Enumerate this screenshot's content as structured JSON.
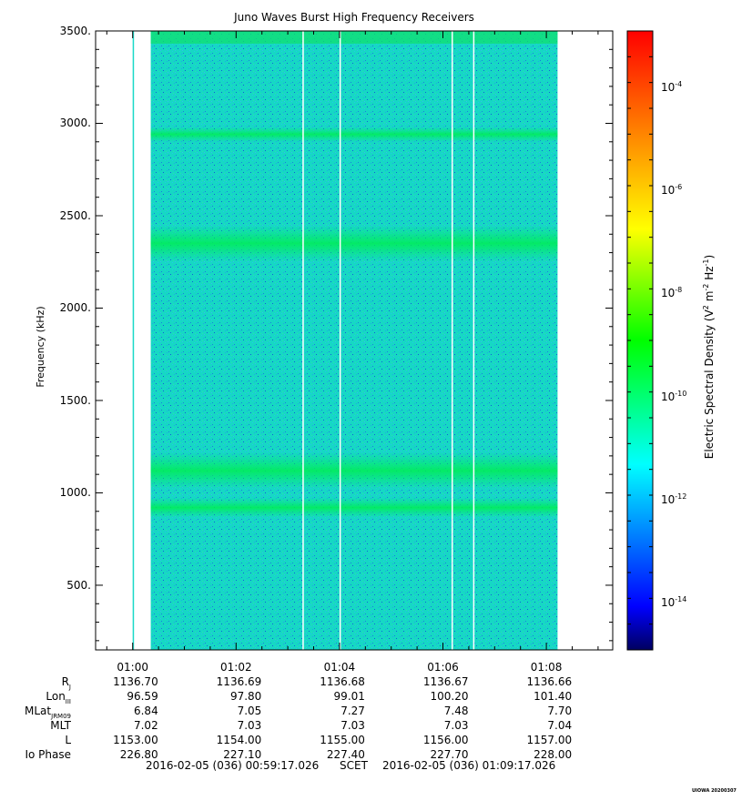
{
  "chart_data": {
    "type": "heatmap",
    "title": "Juno Waves Burst High Frequency Receivers",
    "ylabel": "Frequency (kHz)",
    "ylim": [
      150,
      3500
    ],
    "yticks": [
      {
        "value": 500,
        "label": "500."
      },
      {
        "value": 1000,
        "label": "1000."
      },
      {
        "value": 1500,
        "label": "1500."
      },
      {
        "value": 2000,
        "label": "2000."
      },
      {
        "value": 2500,
        "label": "2500."
      },
      {
        "value": 3000,
        "label": "3000."
      },
      {
        "value": 3500,
        "label": "3500."
      }
    ],
    "x_time_range": [
      "2016-02-05 00:59:17.026",
      "2016-02-05 01:09:17.026"
    ],
    "xticks": [
      "01:00",
      "01:02",
      "01:04",
      "01:06",
      "01:08"
    ],
    "data_coverage": {
      "isolated_column": "01:00:00",
      "start": "01:00:21",
      "end": "01:08:13"
    },
    "data_gaps": [
      "01:03:17",
      "01:04:00",
      "01:06:10",
      "01:06:35"
    ],
    "emission_bands_khz": [
      920,
      1120,
      2350,
      2940
    ],
    "colorbar": {
      "label_main": "Electric Spectral Density (V",
      "label_sup1": "2",
      "label_mid": " m",
      "label_sup2": "-2",
      "label_mid2": " Hz",
      "label_sup3": "-1",
      "label_end": ")",
      "scale": "log",
      "range": [
        -15,
        -3
      ],
      "tick_base": "10",
      "ticks": [
        {
          "exp": -4,
          "label": "-4"
        },
        {
          "exp": -6,
          "label": "-6"
        },
        {
          "exp": -8,
          "label": "-8"
        },
        {
          "exp": -10,
          "label": "-10"
        },
        {
          "exp": -12,
          "label": "-12"
        },
        {
          "exp": -14,
          "label": "-14"
        }
      ],
      "colors": [
        "#000080",
        "#0000ff",
        "#00ffff",
        "#00ff00",
        "#ffff00",
        "#ff8000",
        "#ff0000"
      ]
    },
    "ephemeris": {
      "rows": [
        {
          "label": "R",
          "sub": "J",
          "values": [
            "1136.70",
            "1136.69",
            "1136.68",
            "1136.67",
            "1136.66"
          ]
        },
        {
          "label": "Lon",
          "sub": "III",
          "values": [
            "96.59",
            "97.80",
            "99.01",
            "100.20",
            "101.40"
          ]
        },
        {
          "label": "MLat",
          "sub": "JRM09",
          "values": [
            "6.84",
            "7.05",
            "7.27",
            "7.48",
            "7.70"
          ]
        },
        {
          "label": "MLT",
          "sub": "",
          "values": [
            "7.02",
            "7.03",
            "7.03",
            "7.03",
            "7.04"
          ]
        },
        {
          "label": "L",
          "sub": "",
          "values": [
            "1153.00",
            "1154.00",
            "1155.00",
            "1156.00",
            "1157.00"
          ]
        },
        {
          "label": "Io Phase",
          "sub": "",
          "values": [
            "226.80",
            "227.10",
            "227.40",
            "227.70",
            "228.00"
          ]
        }
      ]
    },
    "footer_start": "2016-02-05 (036) 00:59:17.026",
    "footer_mid": "SCET",
    "footer_end": "2016-02-05 (036) 01:09:17.026",
    "credit": "UIOWA 20200307"
  }
}
